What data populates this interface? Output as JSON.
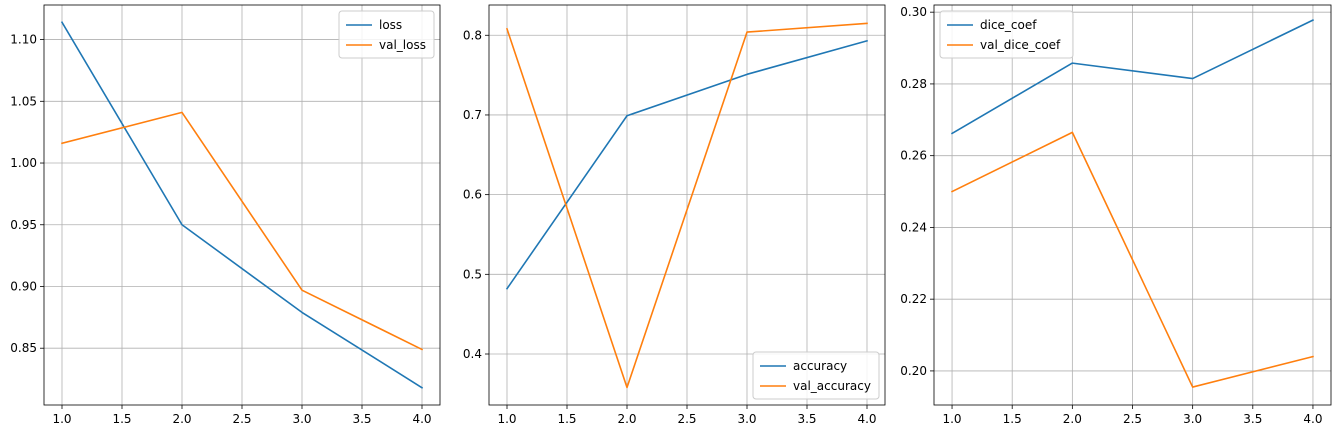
{
  "chart_data": [
    {
      "type": "line",
      "x": [
        1.0,
        2.0,
        3.0,
        4.0
      ],
      "series": [
        {
          "name": "loss",
          "values": [
            1.114,
            0.95,
            0.879,
            0.818
          ],
          "color": "#1f77b4"
        },
        {
          "name": "val_loss",
          "values": [
            1.016,
            1.041,
            0.897,
            0.849
          ],
          "color": "#ff7f0e"
        }
      ],
      "xlim": [
        0.85,
        4.15
      ],
      "ylim": [
        0.804,
        1.128
      ],
      "xticks": [
        1.0,
        1.5,
        2.0,
        2.5,
        3.0,
        3.5,
        4.0
      ],
      "xtick_labels": [
        "1.0",
        "1.5",
        "2.0",
        "2.5",
        "3.0",
        "3.5",
        "4.0"
      ],
      "yticks": [
        0.85,
        0.9,
        0.95,
        1.0,
        1.05,
        1.1
      ],
      "ytick_labels": [
        "0.85",
        "0.90",
        "0.95",
        "1.00",
        "1.05",
        "1.10"
      ],
      "grid": true,
      "legend": "upper right"
    },
    {
      "type": "line",
      "x": [
        1.0,
        2.0,
        3.0,
        4.0
      ],
      "series": [
        {
          "name": "accuracy",
          "values": [
            0.482,
            0.699,
            0.751,
            0.793
          ],
          "color": "#1f77b4"
        },
        {
          "name": "val_accuracy",
          "values": [
            0.808,
            0.358,
            0.804,
            0.815
          ],
          "color": "#ff7f0e"
        }
      ],
      "xlim": [
        0.85,
        4.15
      ],
      "ylim": [
        0.336,
        0.838
      ],
      "xticks": [
        1.0,
        1.5,
        2.0,
        2.5,
        3.0,
        3.5,
        4.0
      ],
      "xtick_labels": [
        "1.0",
        "1.5",
        "2.0",
        "2.5",
        "3.0",
        "3.5",
        "4.0"
      ],
      "yticks": [
        0.4,
        0.5,
        0.6,
        0.7,
        0.8
      ],
      "ytick_labels": [
        "0.4",
        "0.5",
        "0.6",
        "0.7",
        "0.8"
      ],
      "grid": true,
      "legend": "lower right"
    },
    {
      "type": "line",
      "x": [
        1.0,
        2.0,
        3.0,
        4.0
      ],
      "series": [
        {
          "name": "dice_coef",
          "values": [
            0.2662,
            0.2858,
            0.2815,
            0.2978
          ],
          "color": "#1f77b4"
        },
        {
          "name": "val_dice_coef",
          "values": [
            0.25,
            0.2665,
            0.1955,
            0.204
          ],
          "color": "#ff7f0e"
        }
      ],
      "xlim": [
        0.85,
        4.15
      ],
      "ylim": [
        0.1905,
        0.302
      ],
      "xticks": [
        1.0,
        1.5,
        2.0,
        2.5,
        3.0,
        3.5,
        4.0
      ],
      "xtick_labels": [
        "1.0",
        "1.5",
        "2.0",
        "2.5",
        "3.0",
        "3.5",
        "4.0"
      ],
      "yticks": [
        0.2,
        0.22,
        0.24,
        0.26,
        0.28,
        0.3
      ],
      "ytick_labels": [
        "0.20",
        "0.22",
        "0.24",
        "0.26",
        "0.28",
        "0.30"
      ],
      "grid": true,
      "legend": "upper left"
    }
  ]
}
